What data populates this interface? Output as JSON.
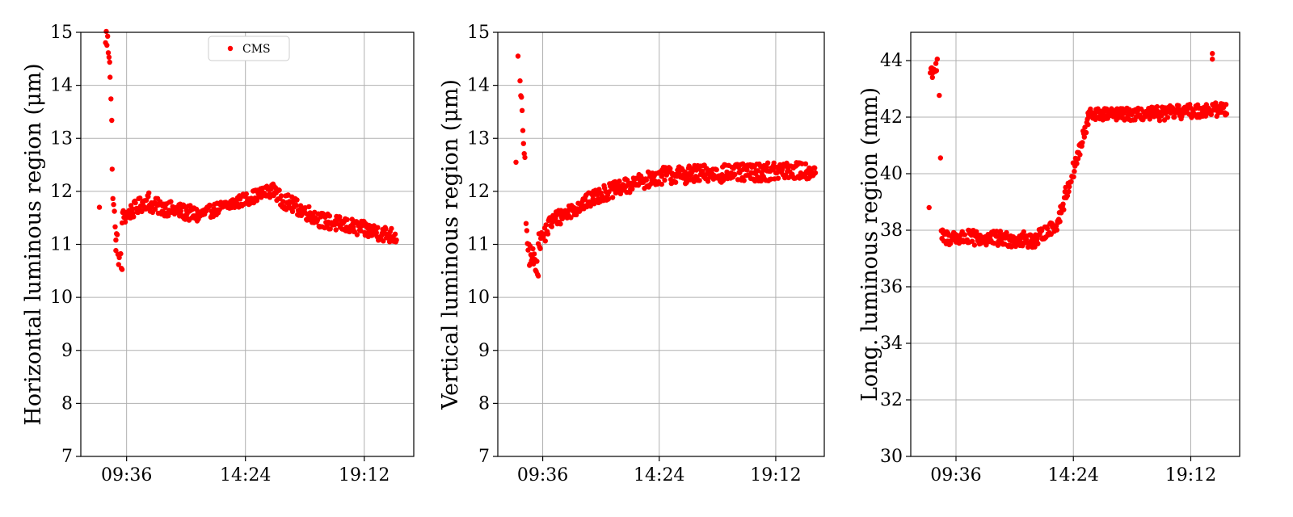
{
  "chart_data": [
    {
      "type": "scatter",
      "title": "",
      "xlabel": "",
      "ylabel": "Horizontal luminous region (μm)",
      "ylim": [
        7,
        15
      ],
      "y_ticks": [
        "7",
        "8",
        "9",
        "10",
        "11",
        "12",
        "13",
        "14",
        "15"
      ],
      "xlim": [
        "07:45",
        "21:12"
      ],
      "x_ticks": [
        "09:36",
        "14:24",
        "19:12"
      ],
      "grid": true,
      "legend": {
        "position": "upper-center",
        "entries": [
          "CMS"
        ]
      },
      "series": [
        {
          "name": "CMS",
          "color": "#ff0000",
          "segments": [
            {
              "from": "08:30",
              "to": "08:30",
              "start": 11.7,
              "end": 11.7,
              "noise": 0
            },
            {
              "from": "08:45",
              "to": "08:55",
              "start": 14.95,
              "end": 14.6,
              "noise": 0.25
            },
            {
              "from": "08:56",
              "to": "09:00",
              "start": 14.2,
              "end": 13.3,
              "noise": 0.1
            },
            {
              "from": "09:01",
              "to": "09:10",
              "start": 12.3,
              "end": 11.0,
              "noise": 0.2
            },
            {
              "from": "09:10",
              "to": "09:25",
              "start": 11.1,
              "end": 10.5,
              "noise": 0.25
            },
            {
              "from": "09:25",
              "to": "10:30",
              "start": 11.5,
              "end": 11.85,
              "noise": 0.15
            },
            {
              "from": "10:30",
              "to": "12:30",
              "start": 11.75,
              "end": 11.55,
              "noise": 0.15
            },
            {
              "from": "12:30",
              "to": "15:40",
              "start": 11.55,
              "end": 12.05,
              "noise": 0.12
            },
            {
              "from": "15:40",
              "to": "17:30",
              "start": 11.9,
              "end": 11.45,
              "noise": 0.15
            },
            {
              "from": "17:30",
              "to": "20:30",
              "start": 11.45,
              "end": 11.15,
              "noise": 0.15
            }
          ]
        }
      ]
    },
    {
      "type": "scatter",
      "title": "",
      "xlabel": "",
      "ylabel": "Vertical luminous region (μm)",
      "ylim": [
        7,
        15
      ],
      "y_ticks": [
        "7",
        "8",
        "9",
        "10",
        "11",
        "12",
        "13",
        "14",
        "15"
      ],
      "xlim": [
        "07:45",
        "21:12"
      ],
      "x_ticks": [
        "09:36",
        "14:24",
        "19:12"
      ],
      "grid": true,
      "series": [
        {
          "color": "#ff0000",
          "segments": [
            {
              "from": "08:30",
              "to": "08:30",
              "start": 12.55,
              "end": 12.55,
              "noise": 0
            },
            {
              "from": "08:35",
              "to": "08:35",
              "start": 14.55,
              "end": 14.55,
              "noise": 0
            },
            {
              "from": "08:40",
              "to": "08:52",
              "start": 14.0,
              "end": 12.6,
              "noise": 0.2
            },
            {
              "from": "08:55",
              "to": "09:05",
              "start": 11.2,
              "end": 10.7,
              "noise": 0.2
            },
            {
              "from": "09:05",
              "to": "09:25",
              "start": 10.8,
              "end": 10.6,
              "noise": 0.2
            },
            {
              "from": "09:25",
              "to": "10:00",
              "start": 11.0,
              "end": 11.45,
              "noise": 0.18
            },
            {
              "from": "10:00",
              "to": "12:00",
              "start": 11.45,
              "end": 11.95,
              "noise": 0.15
            },
            {
              "from": "12:00",
              "to": "14:30",
              "start": 11.95,
              "end": 12.3,
              "noise": 0.15
            },
            {
              "from": "14:30",
              "to": "20:50",
              "start": 12.3,
              "end": 12.4,
              "noise": 0.17
            }
          ]
        }
      ]
    },
    {
      "type": "scatter",
      "title": "",
      "xlabel": "",
      "ylabel": "Long. luminous region (mm)",
      "ylim": [
        30,
        45
      ],
      "y_ticks": [
        "30",
        "32",
        "34",
        "36",
        "38",
        "40",
        "42",
        "44"
      ],
      "xlim": [
        "07:45",
        "21:12"
      ],
      "x_ticks": [
        "09:36",
        "14:24",
        "19:12"
      ],
      "grid": true,
      "series": [
        {
          "color": "#ff0000",
          "segments": [
            {
              "from": "08:30",
              "to": "08:30",
              "start": 38.8,
              "end": 38.8,
              "noise": 0
            },
            {
              "from": "08:33",
              "to": "08:50",
              "start": 43.6,
              "end": 43.8,
              "noise": 0.3
            },
            {
              "from": "08:55",
              "to": "08:58",
              "start": 42.7,
              "end": 40.6,
              "noise": 0.1
            },
            {
              "from": "09:00",
              "to": "13:00",
              "start": 37.75,
              "end": 37.65,
              "noise": 0.28
            },
            {
              "from": "13:00",
              "to": "13:45",
              "start": 37.8,
              "end": 38.2,
              "noise": 0.22
            },
            {
              "from": "13:45",
              "to": "15:00",
              "start": 38.3,
              "end": 41.8,
              "noise": 0.3
            },
            {
              "from": "15:00",
              "to": "17:30",
              "start": 42.1,
              "end": 42.1,
              "noise": 0.22
            },
            {
              "from": "17:30",
              "to": "20:40",
              "start": 42.1,
              "end": 42.3,
              "noise": 0.25
            }
          ],
          "outliers": [
            {
              "x": "20:05",
              "y": 44.25
            },
            {
              "x": "20:05",
              "y": 44.05
            }
          ]
        }
      ]
    }
  ]
}
